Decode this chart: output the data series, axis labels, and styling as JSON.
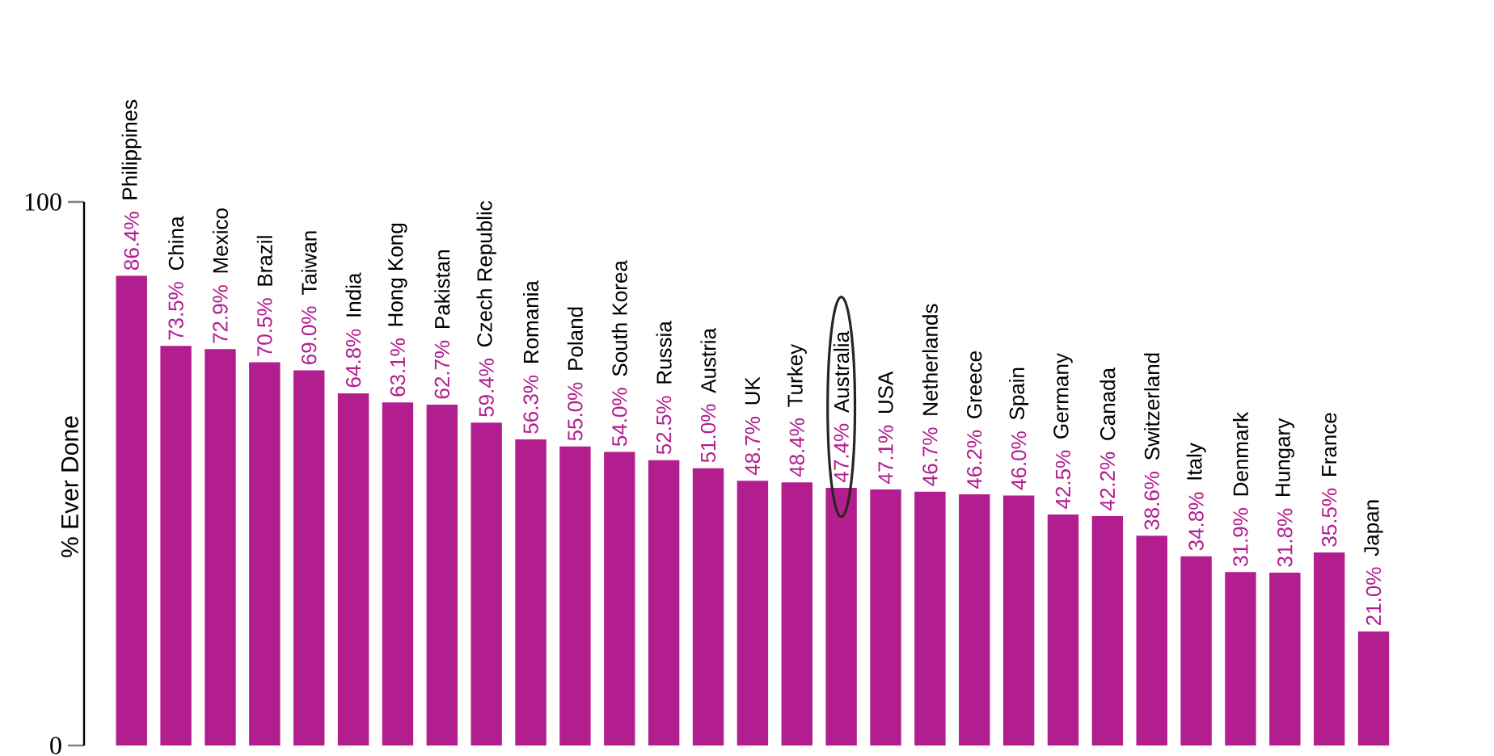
{
  "chart_data": {
    "type": "bar",
    "ylabel": "% Ever Done",
    "color": "#b31e8f",
    "ylim": [
      0,
      100
    ],
    "yticks": [
      0,
      100
    ],
    "categories": [
      "Philippines",
      "China",
      "Mexico",
      "Brazil",
      "Taiwan",
      "India",
      "Hong Kong",
      "Pakistan",
      "Czech Republic",
      "Romania",
      "Poland",
      "South Korea",
      "Russia",
      "Austria",
      "UK",
      "Turkey",
      "Australia",
      "USA",
      "Netherlands",
      "Greece",
      "Spain",
      "Germany",
      "Canada",
      "Switzerland",
      "Italy",
      "Denmark",
      "Hungary",
      "France",
      "Japan"
    ],
    "values": [
      86.4,
      73.5,
      72.9,
      70.5,
      69.0,
      64.8,
      63.1,
      62.7,
      59.4,
      56.3,
      55.0,
      54.0,
      52.5,
      51.0,
      48.7,
      48.4,
      47.4,
      47.1,
      46.7,
      46.2,
      46.0,
      42.5,
      42.2,
      38.6,
      34.8,
      31.9,
      31.8,
      35.5,
      21.0
    ],
    "value_labels": [
      "86.4%",
      "73.5%",
      "72.9%",
      "70.5%",
      "69.0%",
      "64.8%",
      "63.1%",
      "62.7%",
      "59.4%",
      "56.3%",
      "55.0%",
      "54.0%",
      "52.5%",
      "51.0%",
      "48.7%",
      "48.4%",
      "47.4%",
      "47.1%",
      "46.7%",
      "46.2%",
      "46.0%",
      "42.5%",
      "42.2%",
      "38.6%",
      "34.8%",
      "31.9%",
      "31.8%",
      "35.5%",
      "21.0%"
    ]
  }
}
